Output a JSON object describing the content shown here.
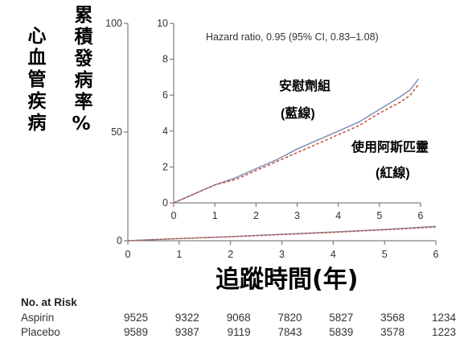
{
  "chart_data": [
    {
      "type": "line",
      "role": "main",
      "ylabel_left": "心血管疾病",
      "ylabel_right": "累積發病率%",
      "xlabel": "追蹤時間(年)",
      "xlim": [
        0,
        6
      ],
      "ylim": [
        0,
        100
      ],
      "x_ticks": [
        "0",
        "1",
        "2",
        "3",
        "4",
        "5",
        "6"
      ],
      "y_ticks": [
        "0",
        "50",
        "100"
      ],
      "series": [
        {
          "name": "安慰劑組",
          "color": "#7f8fb4",
          "dash": false,
          "x": [
            0,
            1,
            2,
            3,
            4,
            5,
            6
          ],
          "y": [
            0,
            1.0,
            1.9,
            3.0,
            4.0,
            5.2,
            6.6
          ]
        },
        {
          "name": "使用阿斯匹靈",
          "color": "#c0533a",
          "dash": true,
          "x": [
            0,
            1,
            2,
            3,
            4,
            5,
            6
          ],
          "y": [
            0,
            1.0,
            1.8,
            2.8,
            3.8,
            5.0,
            6.3
          ]
        }
      ]
    },
    {
      "type": "line",
      "role": "inset",
      "annotation": "Hazard ratio, 0.95 (95% CI, 0.83–1.08)",
      "xlim": [
        0,
        6
      ],
      "ylim": [
        0,
        10
      ],
      "x_ticks": [
        "0",
        "1",
        "2",
        "3",
        "4",
        "5",
        "6"
      ],
      "y_ticks": [
        "0",
        "2",
        "4",
        "6",
        "8",
        "10"
      ],
      "series": [
        {
          "name": "安慰劑組",
          "label_sub": "(藍線)",
          "color": "#7f8fb4",
          "dash": false,
          "x": [
            0,
            0.5,
            1,
            1.5,
            2,
            2.5,
            3,
            3.5,
            4,
            4.5,
            5,
            5.5,
            5.75,
            5.95
          ],
          "y": [
            0,
            0.5,
            1.0,
            1.4,
            1.9,
            2.4,
            3.0,
            3.5,
            4.0,
            4.5,
            5.2,
            5.9,
            6.3,
            6.9
          ]
        },
        {
          "name": "使用阿斯匹靈",
          "label_sub": "(紅線)",
          "color": "#c0533a",
          "dash": true,
          "x": [
            0,
            0.5,
            1,
            1.5,
            2,
            2.5,
            3,
            3.5,
            4,
            4.5,
            5,
            5.5,
            5.75,
            5.95
          ],
          "y": [
            0,
            0.5,
            1.0,
            1.3,
            1.8,
            2.3,
            2.8,
            3.3,
            3.8,
            4.3,
            5.0,
            5.6,
            6.0,
            6.6
          ]
        }
      ]
    }
  ],
  "risk_table": {
    "title": "No. at Risk",
    "rows": [
      {
        "name": "Aspirin",
        "values": [
          "9525",
          "9322",
          "9068",
          "7820",
          "5827",
          "3568",
          "1234"
        ]
      },
      {
        "name": "Placebo",
        "values": [
          "9589",
          "9387",
          "9119",
          "7843",
          "5839",
          "3578",
          "1223"
        ]
      }
    ]
  }
}
